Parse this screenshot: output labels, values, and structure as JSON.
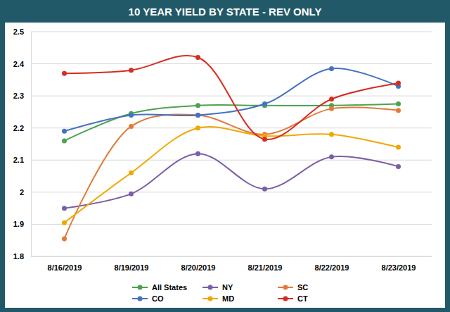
{
  "chart_data": {
    "type": "line",
    "title": "10 YEAR YIELD BY STATE - REV ONLY",
    "categories": [
      "8/16/2019",
      "8/19/2019",
      "8/20/2019",
      "8/21/2019",
      "8/22/2019",
      "8/23/2019"
    ],
    "series": [
      {
        "name": "All States",
        "color": "#4ea24e",
        "values": [
          2.16,
          2.245,
          2.27,
          2.27,
          2.27,
          2.275
        ]
      },
      {
        "name": "NY",
        "color": "#7b5ea7",
        "values": [
          1.95,
          1.995,
          2.12,
          2.01,
          2.11,
          2.08
        ]
      },
      {
        "name": "SC",
        "color": "#e07b39",
        "values": [
          1.855,
          2.205,
          2.24,
          2.18,
          2.26,
          2.255
        ]
      },
      {
        "name": "CO",
        "color": "#4472c4",
        "values": [
          2.19,
          2.24,
          2.24,
          2.275,
          2.385,
          2.33
        ]
      },
      {
        "name": "MD",
        "color": "#f0a800",
        "values": [
          1.905,
          2.06,
          2.2,
          2.175,
          2.18,
          2.14
        ]
      },
      {
        "name": "CT",
        "color": "#d62d20",
        "values": [
          2.37,
          2.38,
          2.42,
          2.165,
          2.29,
          2.34
        ]
      }
    ],
    "ylim": [
      1.8,
      2.5
    ],
    "yticks": [
      1.8,
      1.9,
      2,
      2.1,
      2.2,
      2.3,
      2.4,
      2.5
    ],
    "grid": true,
    "legend": "bottom",
    "marker": "circle",
    "line_style": "smooth"
  }
}
